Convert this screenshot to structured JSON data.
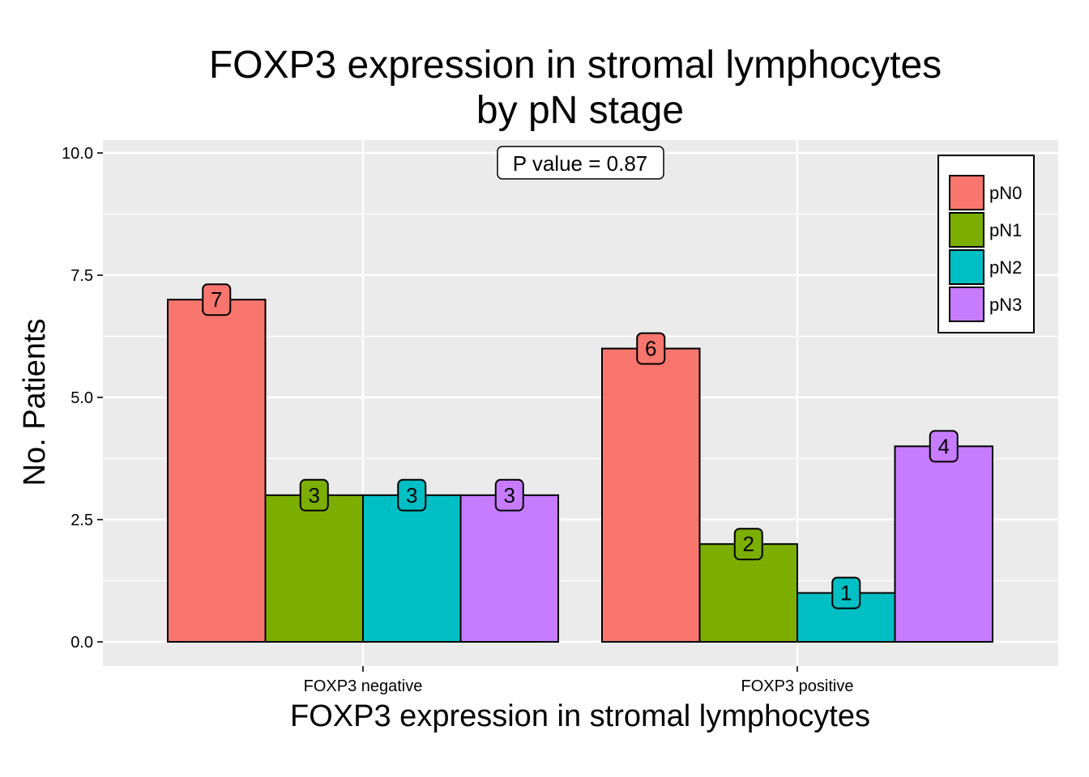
{
  "chart_data": {
    "type": "bar",
    "title_lines": [
      "FOXP3 expression in stromal lymphocytes",
      "by pN stage"
    ],
    "xlabel": "FOXP3 expression in stromal lymphocytes",
    "ylabel": "No. Patients",
    "categories": [
      "FOXP3 negative",
      "FOXP3 positive"
    ],
    "series": [
      {
        "name": "pN0",
        "color": "#F8766D",
        "values": [
          7,
          6
        ]
      },
      {
        "name": "pN1",
        "color": "#7CAE00",
        "values": [
          3,
          2
        ]
      },
      {
        "name": "pN2",
        "color": "#00BFC4",
        "values": [
          3,
          1
        ]
      },
      {
        "name": "pN3",
        "color": "#C77CFF",
        "values": [
          3,
          4
        ]
      }
    ],
    "ylim": [
      0,
      10
    ],
    "yticks": [
      0,
      2.5,
      5,
      7.5,
      10
    ],
    "ytick_labels": [
      "0.0",
      "2.5",
      "5.0",
      "7.5",
      "10.0"
    ],
    "annotation": "P value = 0.87",
    "legend_position": "top-right",
    "grid": true,
    "panel_background": "#EBEBEB"
  }
}
